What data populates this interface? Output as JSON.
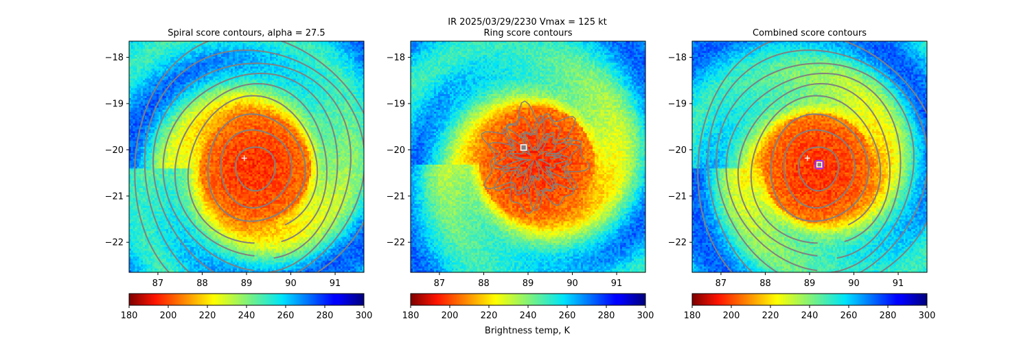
{
  "figure": {
    "suptitle_line1": "IR  2025/03/29/2230    Vmax = 125 kt",
    "colorbar_label": "Brightness temp, K"
  },
  "colors": {
    "contour": "#808080",
    "center_marker": "#ffffff",
    "combined_marker_edge": "#9b30ff"
  },
  "chart_data": [
    {
      "type": "heatmap",
      "title": "Spiral score contours, alpha = 27.5",
      "colormap": "jet_r",
      "colorbar": {
        "vmin": 180,
        "vmax": 300,
        "ticks": [
          "180",
          "200",
          "220",
          "240",
          "260",
          "280",
          "300"
        ]
      },
      "xlim": [
        86.35,
        91.65
      ],
      "ylim": [
        -22.65,
        -17.65
      ],
      "x_ticks": [
        "87",
        "88",
        "89",
        "90",
        "91"
      ],
      "y_ticks": [
        "−18",
        "−19",
        "−20",
        "−21",
        "−22"
      ],
      "storm_center": {
        "lon": 89.2,
        "lat": -20.4,
        "radius_deg": 1.25
      },
      "contours": "spiral",
      "markers": [
        {
          "type": "plus",
          "lon": 88.95,
          "lat": -20.18
        }
      ]
    },
    {
      "type": "heatmap",
      "title": "Ring score contours",
      "colormap": "jet_r",
      "colorbar": {
        "vmin": 180,
        "vmax": 300,
        "ticks": [
          "180",
          "200",
          "220",
          "240",
          "260",
          "280",
          "300"
        ]
      },
      "xlim": [
        86.35,
        91.65
      ],
      "ylim": [
        -22.65,
        -17.65
      ],
      "x_ticks": [
        "87",
        "88",
        "89",
        "90",
        "91"
      ],
      "y_ticks": [
        "−18",
        "−19",
        "−20",
        "−21",
        "−22"
      ],
      "storm_center": {
        "lon": 89.2,
        "lat": -20.3,
        "radius_deg": 1.3
      },
      "contours": "ring",
      "markers": [
        {
          "type": "square",
          "lon": 88.9,
          "lat": -19.95
        }
      ]
    },
    {
      "type": "heatmap",
      "title": "Combined score contours",
      "colormap": "jet_r",
      "colorbar": {
        "vmin": 180,
        "vmax": 300,
        "ticks": [
          "180",
          "200",
          "220",
          "240",
          "260",
          "280",
          "300"
        ]
      },
      "xlim": [
        86.35,
        91.65
      ],
      "ylim": [
        -22.65,
        -17.65
      ],
      "x_ticks": [
        "87",
        "88",
        "89",
        "90",
        "91"
      ],
      "y_ticks": [
        "−18",
        "−19",
        "−20",
        "−21",
        "−22"
      ],
      "storm_center": {
        "lon": 89.2,
        "lat": -20.4,
        "radius_deg": 1.25
      },
      "contours": "spiral",
      "markers": [
        {
          "type": "plus",
          "lon": 88.95,
          "lat": -20.18
        },
        {
          "type": "square_ring",
          "lon": 89.22,
          "lat": -20.32
        }
      ]
    }
  ]
}
